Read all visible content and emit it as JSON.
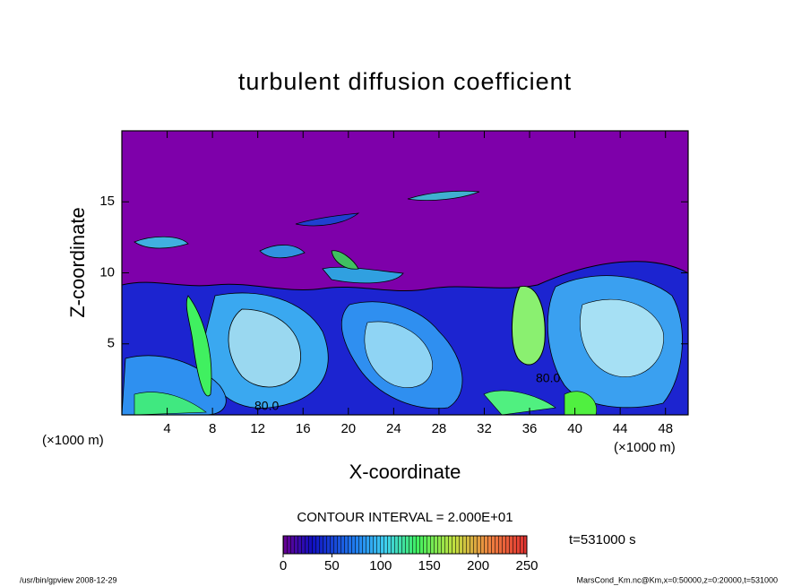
{
  "chart_data": {
    "type": "contour",
    "title": "turbulent diffusion coefficient",
    "xlabel": "X-coordinate",
    "ylabel": "Z-coordinate",
    "x_unit_label": "(×1000 m)",
    "y_unit_label": "(×1000 m)",
    "xlim": [
      0,
      50
    ],
    "xticks": [
      4,
      8,
      12,
      16,
      20,
      24,
      28,
      32,
      36,
      40,
      44,
      48
    ],
    "ylim": [
      0,
      20
    ],
    "yticks": [
      5,
      10,
      15
    ],
    "contour_interval": "CONTOUR INTERVAL = 2.000E+01",
    "contour_labels": [
      "80.0",
      "80.0"
    ],
    "time_label": "t=531000 s",
    "colorbar": {
      "lim": [
        0,
        250
      ],
      "ticks": [
        0,
        50,
        100,
        150,
        200,
        250
      ]
    },
    "footer_left": "/usr/bin/gpview   2008-12-29",
    "footer_right": "MarsCond_Km.nc@Km,x=0:50000,z=0:20000,t=531000"
  }
}
